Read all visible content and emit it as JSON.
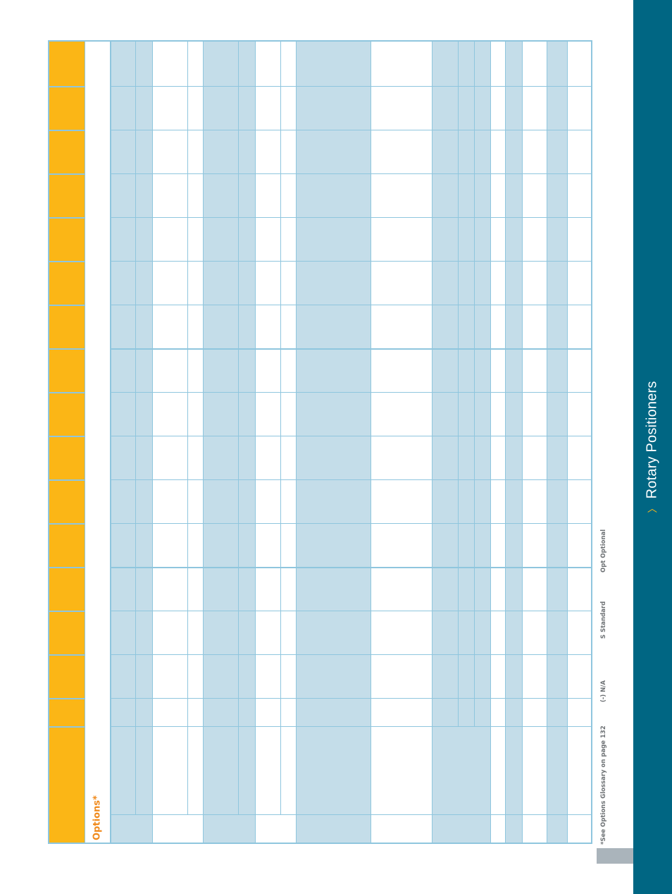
{
  "sidebar": {
    "title": "Rotary Positioners",
    "marker_icon": "chevron-right-icon",
    "color": "#006683",
    "marker_color": "#f7b81a"
  },
  "table": {
    "header_label": "Options*",
    "header_color": "#fbb616",
    "shade_color": "#c4dde9",
    "rule_color": "#8fc6de",
    "label_color": "#f08a1c"
  },
  "footnotes": {
    "glossary": "*See Options Glossary on page 132",
    "na": "(-) N/A",
    "standard": "S  Standard",
    "optional": "Opt   Optional"
  }
}
